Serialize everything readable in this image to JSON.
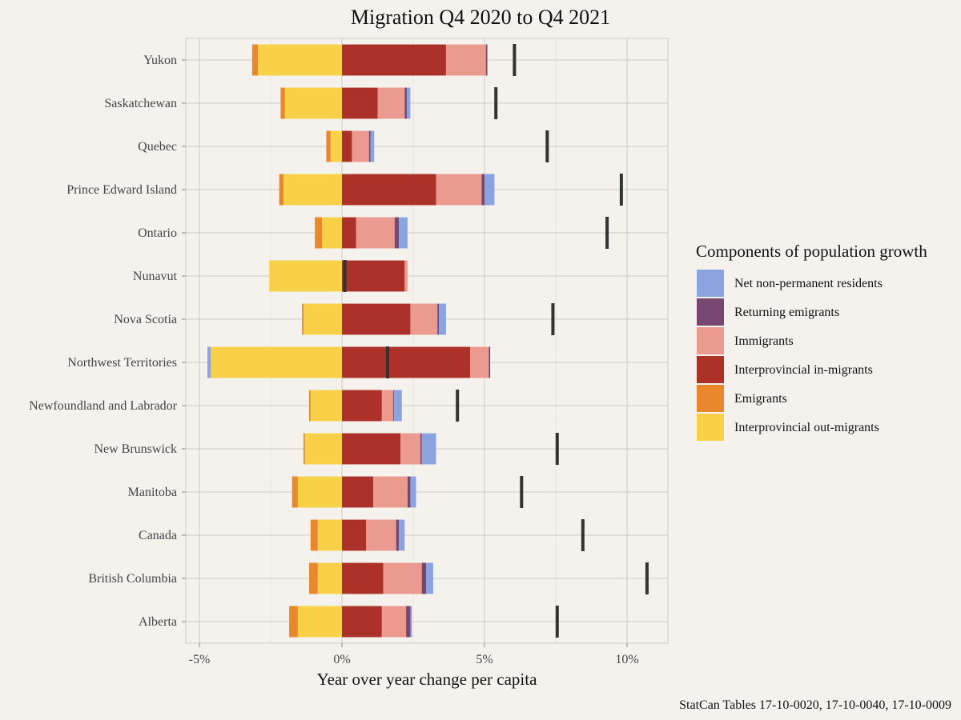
{
  "chart_data": {
    "type": "bar",
    "orientation": "horizontal",
    "stacked": "diverging",
    "title": "Migration Q4 2020 to Q4 2021",
    "xlabel": "Year over year change per capita",
    "ylabel": "",
    "caption": "StatCan Tables 17-10-0020, 17-10-0040, 17-10-0009",
    "xlim": [
      -5.5,
      11.5
    ],
    "x_ticks": [
      -5,
      0,
      5,
      10
    ],
    "x_tick_labels": [
      "-5%",
      "0%",
      "5%",
      "10%"
    ],
    "grid": true,
    "legend_position": "right",
    "legend_title": "Components of population growth",
    "categories": [
      "Yukon",
      "Saskatchewan",
      "Quebec",
      "Prince Edward Island",
      "Ontario",
      "Nunavut",
      "Nova Scotia",
      "Northwest Territories",
      "Newfoundland and Labrador",
      "New Brunswick",
      "Manitoba",
      "Canada",
      "British Columbia",
      "Alberta"
    ],
    "series": [
      {
        "name": "Interprovincial in-migrants",
        "color": "#ab3129",
        "side": "positive",
        "order": 0,
        "values": [
          3.65,
          1.25,
          0.35,
          3.3,
          0.5,
          2.2,
          2.4,
          4.5,
          1.4,
          2.05,
          1.1,
          0.85,
          1.45,
          1.4
        ]
      },
      {
        "name": "Immigrants",
        "color": "#ea9a8f",
        "side": "positive",
        "order": 1,
        "values": [
          1.4,
          0.95,
          0.6,
          1.6,
          1.35,
          0.1,
          0.95,
          0.65,
          0.4,
          0.7,
          1.2,
          1.05,
          1.35,
          0.85
        ]
      },
      {
        "name": "Returning emigrants",
        "color": "#774773",
        "side": "positive",
        "order": 2,
        "values": [
          0.05,
          0.08,
          0.05,
          0.1,
          0.15,
          0.0,
          0.05,
          0.05,
          0.03,
          0.05,
          0.1,
          0.1,
          0.15,
          0.15
        ]
      },
      {
        "name": "Net non-permanent residents",
        "color": "#8ba3de",
        "side": "positive",
        "order": 3,
        "values": [
          0.0,
          0.12,
          0.13,
          0.35,
          0.3,
          0.0,
          0.25,
          0.0,
          0.27,
          0.5,
          0.2,
          0.2,
          0.25,
          0.05
        ]
      },
      {
        "name": "Interprovincial out-migrants",
        "color": "#f8d148",
        "side": "negative",
        "order": 0,
        "values": [
          2.95,
          2.0,
          0.4,
          2.05,
          0.7,
          2.55,
          1.35,
          4.6,
          1.1,
          1.3,
          1.55,
          0.85,
          0.85,
          1.55
        ]
      },
      {
        "name": "Emigrants",
        "color": "#e8872c",
        "side": "negative",
        "order": 1,
        "values": [
          0.2,
          0.15,
          0.15,
          0.15,
          0.25,
          0.0,
          0.05,
          0.0,
          0.05,
          0.05,
          0.2,
          0.25,
          0.3,
          0.3
        ]
      },
      {
        "name": "Net non-permanent residents",
        "color": "#8ba3de",
        "side": "negative",
        "order": 2,
        "values": [
          0.0,
          0.0,
          0.0,
          0.0,
          0.0,
          0.0,
          0.0,
          0.0,
          0.0,
          0.0,
          0.0,
          0.0,
          0.0,
          0.0
        ]
      }
    ],
    "extra_negative": [
      {
        "category": "Northwest Territories",
        "color": "#8ba3de",
        "value": 0.12
      }
    ],
    "markers": {
      "description_color": "#333333",
      "values": [
        6.05,
        5.4,
        7.2,
        9.8,
        9.3,
        0.1,
        7.4,
        1.6,
        4.05,
        7.55,
        6.3,
        8.45,
        10.7,
        7.55
      ]
    },
    "legend": [
      {
        "name": "Net non-permanent residents",
        "color": "#8ba3de"
      },
      {
        "name": "Returning emigrants",
        "color": "#774773"
      },
      {
        "name": "Immigrants",
        "color": "#ea9a8f"
      },
      {
        "name": "Interprovincial in-migrants",
        "color": "#ab3129"
      },
      {
        "name": "Emigrants",
        "color": "#e8872c"
      },
      {
        "name": "Interprovincial out-migrants",
        "color": "#f8d148"
      }
    ]
  }
}
